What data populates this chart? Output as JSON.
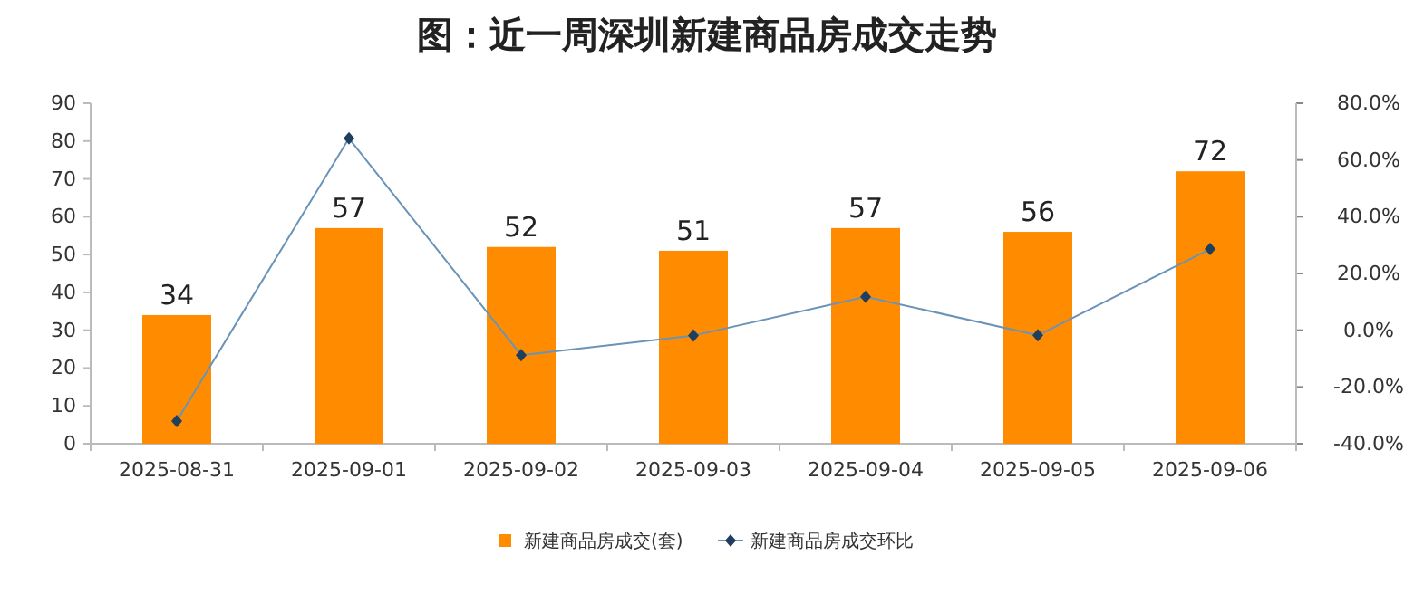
{
  "chart_data": {
    "type": "bar",
    "title": "图：近一周深圳新建商品房成交走势",
    "categories": [
      "2025-08-31",
      "2025-09-01",
      "2025-09-02",
      "2025-09-03",
      "2025-09-04",
      "2025-09-05",
      "2025-09-06"
    ],
    "series": [
      {
        "name": "新建商品房成交(套)",
        "color": "#ff8c00",
        "values": [
          34,
          57,
          52,
          51,
          57,
          56,
          72
        ],
        "value_labels": [
          "34",
          "57",
          "52",
          "51",
          "57",
          "56",
          "72"
        ]
      },
      {
        "name": "新建商品房成交环比",
        "type": "line",
        "axis": "y2",
        "color": "#6a93b8",
        "marker": "diamond",
        "values": [
          -32,
          67.6,
          -8.8,
          -1.9,
          11.8,
          -1.8,
          28.6
        ]
      }
    ],
    "ylim": [
      0,
      90
    ],
    "yticks": [
      0,
      10,
      20,
      30,
      40,
      50,
      60,
      70,
      80,
      90
    ],
    "y2lim": [
      -40,
      80
    ],
    "y2ticks": [
      {
        "value": -40,
        "label": "-40.0%"
      },
      {
        "value": -20,
        "label": "-20.0%"
      },
      {
        "value": 0,
        "label": "0.0%"
      },
      {
        "value": 20,
        "label": "20.0%"
      },
      {
        "value": 40,
        "label": "40.0%"
      },
      {
        "value": 60,
        "label": "60.0%"
      },
      {
        "value": 80,
        "label": "80.0%"
      }
    ],
    "legend": "bottom",
    "grid": false
  }
}
